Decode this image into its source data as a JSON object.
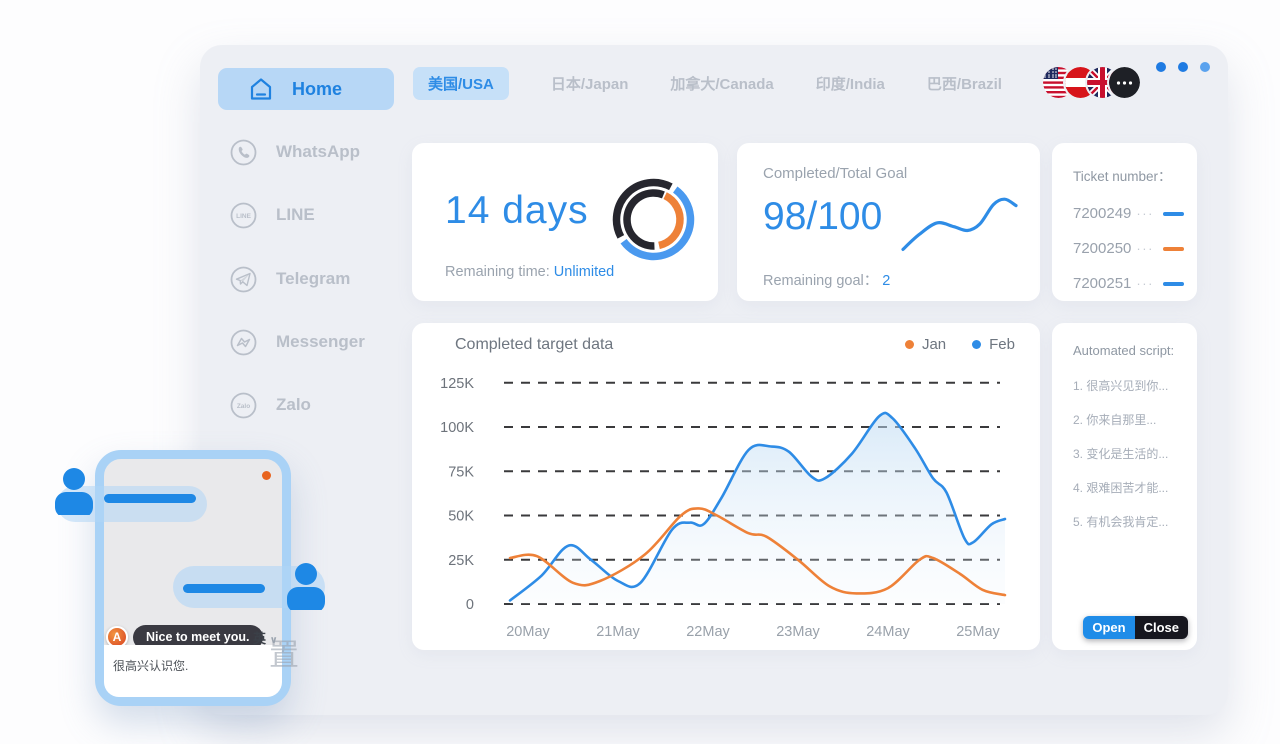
{
  "colors": {
    "accent_blue": "#2e8ce6",
    "orange": "#ee8138",
    "dark": "#26262e",
    "grey_text": "#9aa3ae",
    "sidebar_inactive": "#b9bfc9",
    "active_pill_bg": "#b7d7f6"
  },
  "sidebar": {
    "items": [
      {
        "label": "Home",
        "icon": "home-icon",
        "active": true
      },
      {
        "label": "WhatsApp",
        "icon": "whatsapp-icon",
        "active": false
      },
      {
        "label": "LINE",
        "icon": "line-icon",
        "active": false
      },
      {
        "label": "Telegram",
        "icon": "telegram-icon",
        "active": false
      },
      {
        "label": "Messenger",
        "icon": "messenger-icon",
        "active": false
      },
      {
        "label": "Zalo",
        "icon": "zalo-icon",
        "active": false
      }
    ]
  },
  "topbar": {
    "tabs": [
      {
        "label": "美国/USA",
        "active": true
      },
      {
        "label": "日本/Japan",
        "active": false
      },
      {
        "label": "加拿大/Canada",
        "active": false
      },
      {
        "label": "印度/India",
        "active": false
      },
      {
        "label": "巴西/Brazil",
        "active": false
      }
    ],
    "flags": [
      "usa-flag",
      "austria-flag",
      "uk-flag",
      "more-flags"
    ],
    "window_dots": [
      "#1f7be2",
      "#1f7be2",
      "#5aa2ee"
    ]
  },
  "cards": {
    "remaining_time": {
      "value": "14 days",
      "label": "Remaining time:",
      "highlight": "Unlimited",
      "donut": {
        "outer": [
          {
            "color": "#4a99ef",
            "start": 36,
            "end": 234
          },
          {
            "color": "#26262e",
            "start": 242,
            "end": 388
          }
        ],
        "inner": [
          {
            "color": "#ee8138",
            "start": 26,
            "end": 168
          },
          {
            "color": "#26262e",
            "start": 178,
            "end": 382
          }
        ]
      }
    },
    "goal": {
      "title": "Completed/Total Goal",
      "value": "98/100",
      "label": "Remaining goal：",
      "remaining": "2",
      "sparkline": {
        "color": "#2e8ce6",
        "points": [
          [
            0,
            0.97
          ],
          [
            0.14,
            0.7
          ],
          [
            0.3,
            0.48
          ],
          [
            0.45,
            0.55
          ],
          [
            0.57,
            0.62
          ],
          [
            0.68,
            0.5
          ],
          [
            0.8,
            0.14
          ],
          [
            0.9,
            0.04
          ],
          [
            1,
            0.16
          ]
        ]
      }
    },
    "tickets": {
      "title": "Ticket number：",
      "more_dots": "···",
      "rows": [
        {
          "number": "7200249",
          "color": "#2e8ce6"
        },
        {
          "number": "7200250",
          "color": "#ee8138"
        },
        {
          "number": "7200251",
          "color": "#2e8ce6"
        }
      ]
    }
  },
  "chart_data": {
    "type": "line",
    "title": "Completed target data",
    "x_tick_labels": [
      "20May",
      "21May",
      "22May",
      "23May",
      "24May",
      "25May"
    ],
    "x_tick_values": [
      20,
      21,
      22,
      23,
      24,
      25
    ],
    "y_tick_labels": [
      "125K",
      "100K",
      "75K",
      "50K",
      "25K",
      "0"
    ],
    "y_tick_values": [
      125,
      100,
      75,
      50,
      25,
      0
    ],
    "ylim": [
      0,
      125
    ],
    "xlim": [
      19.78,
      25.32
    ],
    "grid": "horizontal-dashed",
    "legend_position": "top-right",
    "legend": [
      {
        "name": "Jan",
        "color": "#ee8138"
      },
      {
        "name": "Feb",
        "color": "#2e8ce6"
      }
    ],
    "series": [
      {
        "name": "Feb",
        "color": "#2e8ce6",
        "area_fill": true,
        "points": [
          [
            19.8,
            2
          ],
          [
            20.15,
            16
          ],
          [
            20.45,
            33
          ],
          [
            20.7,
            25
          ],
          [
            21.0,
            13
          ],
          [
            21.25,
            12
          ],
          [
            21.6,
            42
          ],
          [
            21.8,
            46
          ],
          [
            21.95,
            45
          ],
          [
            22.15,
            60
          ],
          [
            22.45,
            87
          ],
          [
            22.7,
            89
          ],
          [
            22.9,
            86
          ],
          [
            23.15,
            72
          ],
          [
            23.3,
            71
          ],
          [
            23.6,
            85
          ],
          [
            23.9,
            106
          ],
          [
            24.05,
            105
          ],
          [
            24.3,
            88
          ],
          [
            24.5,
            71
          ],
          [
            24.65,
            63
          ],
          [
            24.85,
            37
          ],
          [
            24.95,
            35
          ],
          [
            25.15,
            45
          ],
          [
            25.3,
            48
          ]
        ]
      },
      {
        "name": "Jan",
        "color": "#ee8138",
        "area_fill": false,
        "points": [
          [
            19.8,
            26
          ],
          [
            20.1,
            27
          ],
          [
            20.5,
            12
          ],
          [
            20.8,
            13
          ],
          [
            21.3,
            28
          ],
          [
            21.7,
            50
          ],
          [
            21.9,
            54
          ],
          [
            22.1,
            50
          ],
          [
            22.45,
            40
          ],
          [
            22.65,
            38
          ],
          [
            23.0,
            25
          ],
          [
            23.35,
            10
          ],
          [
            23.65,
            6
          ],
          [
            24.0,
            9
          ],
          [
            24.35,
            25
          ],
          [
            24.5,
            26
          ],
          [
            24.8,
            17
          ],
          [
            25.05,
            8
          ],
          [
            25.3,
            5
          ]
        ]
      }
    ]
  },
  "script_panel": {
    "title": "Automated script:",
    "items": [
      "1. 很高兴见到你...",
      "2. 你来自那里...",
      "3. 变化是生活的...",
      "4. 艰难困苦才能...",
      "5. 有机会我肯定..."
    ],
    "open_label": "Open",
    "close_label": "Close"
  },
  "chat_widget": {
    "tooltip": "Nice to meet you.",
    "badge": "A",
    "lang": "英",
    "chevron": "∨",
    "message": "很高兴认识您.",
    "watermark": "置"
  }
}
